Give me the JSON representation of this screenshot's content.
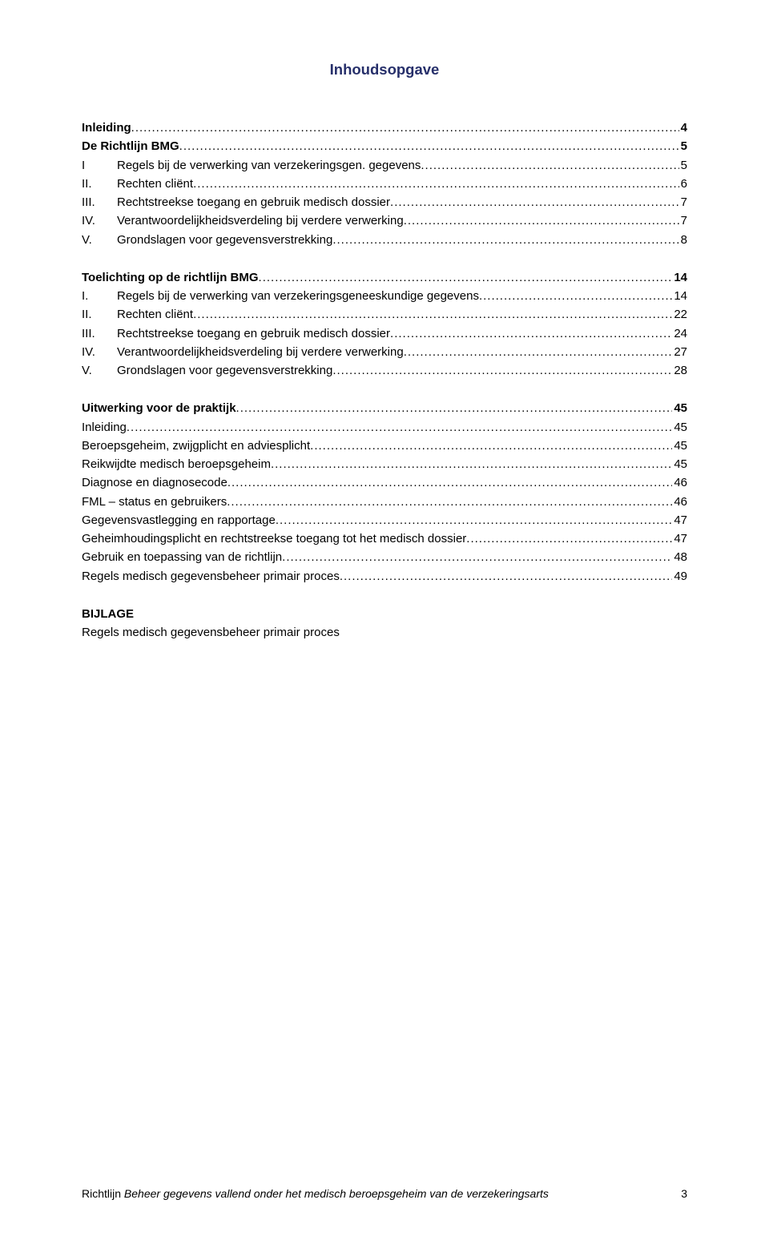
{
  "colors": {
    "title": "#262f6a",
    "text": "#000000",
    "background": "#ffffff"
  },
  "fonts": {
    "family": "Verdana",
    "title_size_pt": 14,
    "body_size_pt": 11
  },
  "title": "Inhoudsopgave",
  "toc": [
    {
      "label": "Inleiding",
      "page": "4",
      "bold": true,
      "indent": 0
    },
    {
      "label": "De Richtlijn BMG",
      "page": "5",
      "bold": true,
      "indent": 0
    },
    {
      "num": "I",
      "label": "Regels bij de verwerking van verzekeringsgen. gegevens",
      "page": "5",
      "bold": false,
      "indent": 0
    },
    {
      "num": "II.",
      "label": "Rechten cliënt",
      "page": "6",
      "bold": false,
      "indent": 0
    },
    {
      "num": "III.",
      "label": "Rechtstreekse toegang en gebruik medisch dossier",
      "page": "7",
      "bold": false,
      "indent": 0
    },
    {
      "num": "IV.",
      "label": "Verantwoordelijkheidsverdeling bij verdere verwerking",
      "page": "7",
      "bold": false,
      "indent": 0
    },
    {
      "num": "V.",
      "label": "Grondslagen voor gegevensverstrekking",
      "page": "8",
      "bold": false,
      "indent": 0
    },
    {
      "gap": "md"
    },
    {
      "label": "Toelichting op de richtlijn BMG",
      "page": "14",
      "bold": true,
      "indent": 0
    },
    {
      "num": "I.",
      "label": "Regels bij de verwerking van verzekeringsgeneeskundige gegevens",
      "page": "14",
      "bold": false,
      "indent": 0
    },
    {
      "num": "II.",
      "label": "Rechten cliënt",
      "page": "22",
      "bold": false,
      "indent": 0
    },
    {
      "num": "III.",
      "label": "Rechtstreekse toegang en gebruik medisch dossier",
      "page": "24",
      "bold": false,
      "indent": 0
    },
    {
      "num": "IV.",
      "label": "Verantwoordelijkheidsverdeling bij verdere verwerking",
      "page": "27",
      "bold": false,
      "indent": 0
    },
    {
      "num": "V.",
      "label": "Grondslagen voor gegevensverstrekking",
      "page": "28",
      "bold": false,
      "indent": 0
    },
    {
      "gap": "md"
    },
    {
      "label": "Uitwerking voor de praktijk",
      "page": "45",
      "bold": true,
      "indent": 0
    },
    {
      "label": "Inleiding",
      "page": "45",
      "bold": false,
      "indent": 0
    },
    {
      "label": "Beroepsgeheim, zwijgplicht en adviesplicht",
      "page": "45",
      "bold": false,
      "indent": 0
    },
    {
      "label": "Reikwijdte medisch beroepsgeheim",
      "page": "45",
      "bold": false,
      "indent": 0
    },
    {
      "label": "Diagnose en diagnosecode",
      "page": "46",
      "bold": false,
      "indent": 0
    },
    {
      "label": "FML – status en gebruikers",
      "page": "46",
      "bold": false,
      "indent": 0
    },
    {
      "label": "Gegevensvastlegging en rapportage",
      "page": "47",
      "bold": false,
      "indent": 0
    },
    {
      "label": "Geheimhoudingsplicht en rechtstreekse toegang tot het medisch dossier",
      "page": "47",
      "bold": false,
      "indent": 0
    },
    {
      "label": "Gebruik en toepassing van de richtlijn",
      "page": "48",
      "bold": false,
      "indent": 0
    },
    {
      "label": "Regels medisch gegevensbeheer primair proces",
      "page": "49",
      "bold": false,
      "indent": 0
    }
  ],
  "bijlage": {
    "heading": "BIJLAGE",
    "line": "Regels medisch gegevensbeheer primair proces"
  },
  "footer": {
    "lead": "Richtlijn ",
    "italic": "Beheer gegevens vallend onder het medisch beroepsgeheim van de verzekeringsarts",
    "page": "3"
  }
}
